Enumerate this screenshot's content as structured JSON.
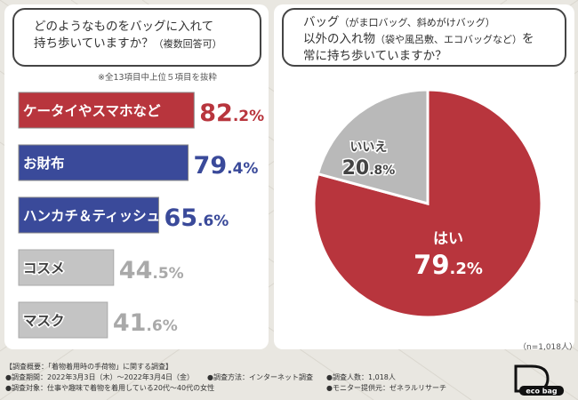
{
  "left_question": {
    "line1": "どのようなものをバッグに入れて",
    "line2": "持ち歩いていますか？",
    "suffix": "（複数回答可）",
    "note": "※全13項目中上位５項目を抜粋"
  },
  "right_question": {
    "line1a": "バッグ",
    "line1b": "（がま口バッグ、斜めがけバッグ）",
    "line2a": "以外の入れ物",
    "line2b": "（袋や風呂敷、エコバッグなど）",
    "line2c": "を",
    "line3": "常に持ち歩いていますか？"
  },
  "chart_data": [
    {
      "type": "bar",
      "orientation": "horizontal",
      "categories": [
        "ケータイやスマホなど",
        "お財布",
        "ハンカチ＆ティッシュ",
        "コスメ",
        "マスク"
      ],
      "values": [
        82.2,
        79.4,
        65.6,
        44.5,
        41.6
      ],
      "value_labels": [
        [
          "82",
          ".2",
          "%"
        ],
        [
          "79",
          ".4",
          "%"
        ],
        [
          "65",
          ".6",
          "%"
        ],
        [
          "44",
          ".5",
          "%"
        ],
        [
          "41",
          ".6",
          "%"
        ]
      ],
      "colors": [
        "#b8353d",
        "#3a4a9a",
        "#3a4a9a",
        "#c4c4c4",
        "#c4c4c4"
      ]
    },
    {
      "type": "pie",
      "labels": [
        "はい",
        "いいえ"
      ],
      "values": [
        79.2,
        20.8
      ],
      "value_labels": [
        [
          "79",
          ".2",
          "%"
        ],
        [
          "20",
          ".8",
          "%"
        ]
      ],
      "colors": [
        "#b8353d",
        "#b9b9b9"
      ],
      "sample_size": "（n=1,018人）"
    }
  ],
  "footer": {
    "title": "【調査概要：「着物着用時の手荷物」に関する調査】",
    "period": "●調査期間：2022年3月3日（木）〜2022年3月4日（金）",
    "method": "●調査方法：インターネット調査",
    "people": "●調査人数：1,018人",
    "target": "●調査対象：仕事や趣味で着物を着用している20代〜40代の女性",
    "provider": "●モニター提供元：ゼネラルリサーチ"
  },
  "logo": {
    "text": "eco bag"
  }
}
